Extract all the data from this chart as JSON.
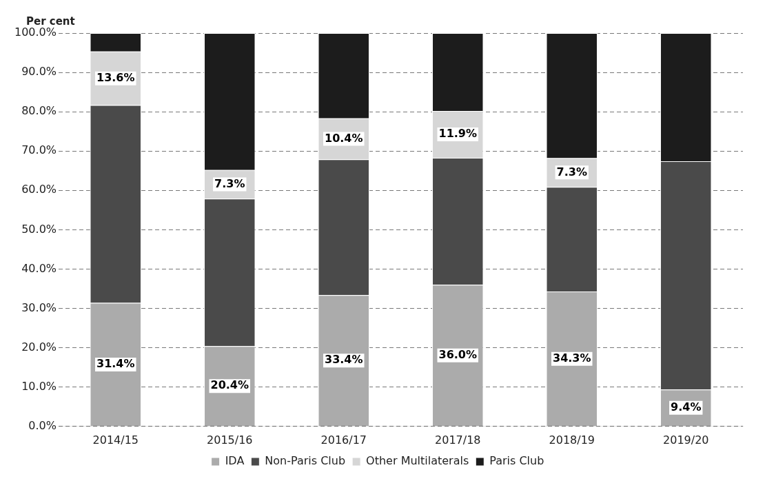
{
  "chart_data": {
    "type": "bar",
    "stacked": true,
    "ylabel": "Per cent",
    "categories": [
      "2014/15",
      "2015/16",
      "2016/17",
      "2017/18",
      "2018/19",
      "2019/20"
    ],
    "series": [
      {
        "name": "IDA",
        "color": "#ababab",
        "values": [
          31.4,
          20.4,
          33.4,
          36.0,
          34.3,
          9.4
        ],
        "value_labels": [
          "31.4%",
          "20.4%",
          "33.4%",
          "36.0%",
          "34.3%",
          "9.4%"
        ]
      },
      {
        "name": "Non-Paris Club",
        "color": "#4a4a4a",
        "values": [
          50.3,
          37.5,
          34.5,
          32.3,
          26.6,
          58.0
        ],
        "value_labels": [
          null,
          null,
          null,
          null,
          null,
          null
        ]
      },
      {
        "name": "Other Multilaterals",
        "color": "#d6d6d6",
        "values": [
          13.6,
          7.3,
          10.4,
          11.9,
          7.3,
          0
        ],
        "value_labels": [
          "13.6%",
          "7.3%",
          "10.4%",
          "11.9%",
          "7.3%",
          null
        ]
      },
      {
        "name": "Paris Club",
        "color": "#1c1c1c",
        "values": [
          4.7,
          34.8,
          21.7,
          19.8,
          31.8,
          32.6
        ],
        "value_labels": [
          null,
          null,
          null,
          null,
          null,
          null
        ]
      }
    ],
    "ylim": [
      0,
      100
    ],
    "yticks": [
      {
        "value": 0,
        "label": "0.0%"
      },
      {
        "value": 10,
        "label": "10.0%"
      },
      {
        "value": 20,
        "label": "20.0%"
      },
      {
        "value": 30,
        "label": "30.0%"
      },
      {
        "value": 40,
        "label": "40.0%"
      },
      {
        "value": 50,
        "label": "50.0%"
      },
      {
        "value": 60,
        "label": "60.0%"
      },
      {
        "value": 70,
        "label": "70.0%"
      },
      {
        "value": 80,
        "label": "80.0%"
      },
      {
        "value": 90,
        "label": "90.0%"
      },
      {
        "value": 100,
        "label": "100.0%"
      }
    ],
    "grid": "y",
    "legend": "bottom"
  }
}
